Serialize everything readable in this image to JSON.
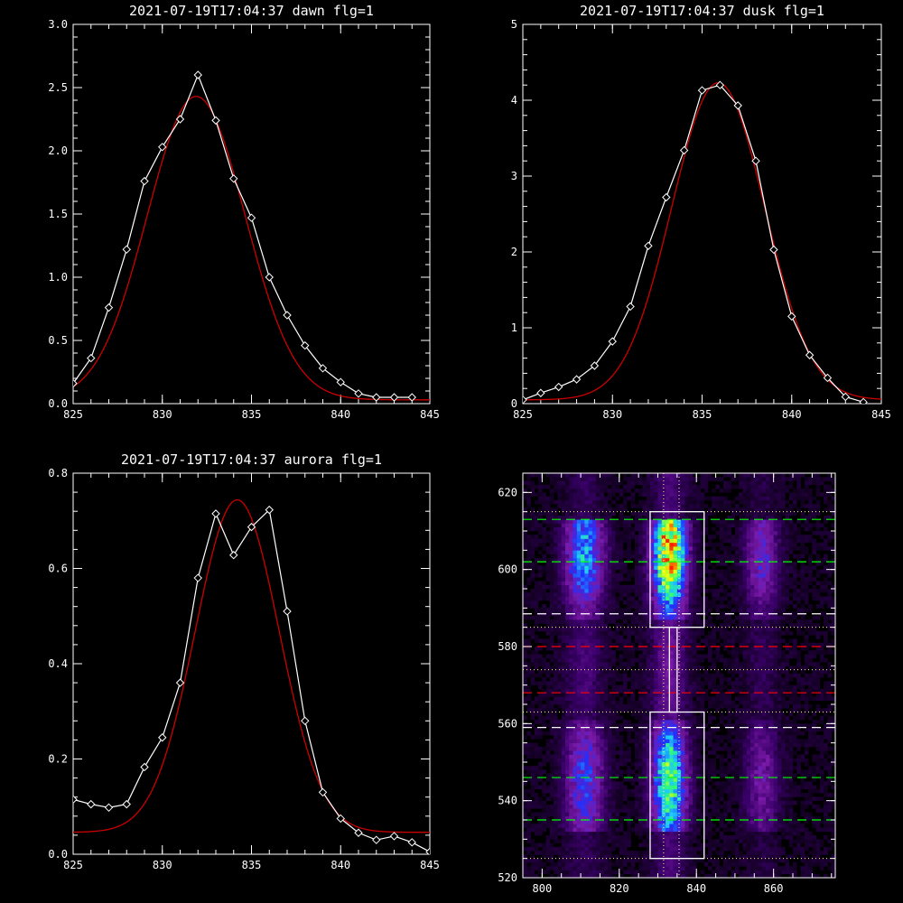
{
  "chart_data": [
    {
      "type": "line",
      "title": "2021-07-19T17:04:37 dawn flg=1",
      "xlim": [
        825,
        845
      ],
      "ylim": [
        0,
        3.0
      ],
      "xticks": [
        "825",
        "830",
        "835",
        "840",
        "845"
      ],
      "yticks": [
        "0.0",
        "0.5",
        "1.0",
        "1.5",
        "2.0",
        "2.5",
        "3.0"
      ],
      "series": [
        {
          "role": "measured",
          "color": "#ffffff",
          "marker": "diamond",
          "x": [
            825,
            826,
            827,
            828,
            829,
            830,
            831,
            832,
            833,
            834,
            835,
            836,
            837,
            838,
            839,
            840,
            841,
            842,
            843,
            844
          ],
          "y": [
            0.16,
            0.36,
            0.76,
            1.22,
            1.76,
            2.03,
            2.25,
            2.6,
            2.24,
            1.78,
            1.47,
            1.0,
            0.7,
            0.46,
            0.28,
            0.17,
            0.08,
            0.05,
            0.05,
            0.05
          ]
        },
        {
          "role": "fit",
          "color": "#cc0000",
          "model": "gaussian",
          "amplitude": 2.4,
          "center": 831.9,
          "sigma": 2.75,
          "baseline": 0.03,
          "xrange": [
            825,
            845
          ]
        }
      ]
    },
    {
      "type": "line",
      "title": "2021-07-19T17:04:37 dusk flg=1",
      "xlim": [
        825,
        845
      ],
      "ylim": [
        0,
        5
      ],
      "xticks": [
        "825",
        "830",
        "835",
        "840",
        "845"
      ],
      "yticks": [
        "0",
        "1",
        "2",
        "3",
        "4",
        "5"
      ],
      "series": [
        {
          "role": "measured",
          "color": "#ffffff",
          "marker": "diamond",
          "x": [
            825,
            826,
            827,
            828,
            829,
            830,
            831,
            832,
            833,
            834,
            835,
            836,
            837,
            838,
            839,
            840,
            841,
            842,
            843,
            844
          ],
          "y": [
            0.05,
            0.14,
            0.22,
            0.32,
            0.5,
            0.82,
            1.28,
            2.08,
            2.72,
            3.34,
            4.13,
            4.2,
            3.93,
            3.2,
            2.03,
            1.15,
            0.64,
            0.34,
            0.09,
            0.02
          ]
        },
        {
          "role": "fit",
          "color": "#cc0000",
          "model": "gaussian",
          "amplitude": 4.18,
          "center": 835.9,
          "sigma": 2.6,
          "baseline": 0.05,
          "xrange": [
            825,
            845
          ]
        }
      ]
    },
    {
      "type": "line",
      "title": "2021-07-19T17:04:37 aurora flg=1",
      "xlim": [
        825,
        845
      ],
      "ylim": [
        0,
        0.8
      ],
      "xticks": [
        "825",
        "830",
        "835",
        "840",
        "845"
      ],
      "yticks": [
        "0.0",
        "0.2",
        "0.4",
        "0.6",
        "0.8"
      ],
      "series": [
        {
          "role": "measured",
          "color": "#ffffff",
          "marker": "diamond",
          "x": [
            825,
            826,
            827,
            828,
            829,
            830,
            831,
            832,
            833,
            834,
            835,
            836,
            837,
            838,
            839,
            840,
            841,
            842,
            843,
            844,
            845
          ],
          "y": [
            0.115,
            0.105,
            0.098,
            0.105,
            0.183,
            0.245,
            0.36,
            0.58,
            0.715,
            0.628,
            0.687,
            0.723,
            0.51,
            0.28,
            0.13,
            0.075,
            0.045,
            0.03,
            0.038,
            0.025,
            0.005
          ]
        },
        {
          "role": "fit",
          "color": "#cc0000",
          "model": "gaussian",
          "amplitude": 0.698,
          "center": 834.2,
          "sigma": 2.35,
          "baseline": 0.046,
          "xrange": [
            825,
            845
          ]
        }
      ]
    },
    {
      "type": "heatmap",
      "xlim": [
        795,
        876
      ],
      "ylim": [
        520,
        625
      ],
      "xticks": [
        "800",
        "820",
        "840",
        "860"
      ],
      "yticks": [
        "520",
        "540",
        "560",
        "580",
        "600",
        "620"
      ],
      "colormap": [
        "#000000",
        "#3a006a",
        "#7a1aa8",
        "#2030ff",
        "#1ec8ff",
        "#30ff70",
        "#ffff00",
        "#ff2000"
      ],
      "emission_columns": [
        {
          "x_center": 811,
          "x_sigma": 3.4,
          "intensity": 0.55
        },
        {
          "x_center": 833,
          "x_sigma": 3.0,
          "intensity": 1.0
        },
        {
          "x_center": 857,
          "x_sigma": 3.0,
          "intensity": 0.32
        }
      ],
      "emission_bands": [
        {
          "y_from": 587,
          "y_to": 613,
          "center": 604,
          "peak": 1.0
        },
        {
          "y_from": 532,
          "y_to": 561,
          "center": 545,
          "peak": 0.7
        },
        {
          "y_from": 561,
          "y_to": 587,
          "center": 575,
          "peak": 0.12
        }
      ],
      "boxes": [
        {
          "x": [
            828,
            842
          ],
          "y": [
            585,
            615
          ],
          "color": "#ffffff"
        },
        {
          "x": [
            828,
            842
          ],
          "y": [
            525,
            563
          ],
          "color": "#ffffff"
        },
        {
          "x": [
            833,
            835
          ],
          "y": [
            563,
            585
          ],
          "color": "#ffffff"
        }
      ],
      "dashed_lines": [
        {
          "y": 613,
          "color": "#00ff00"
        },
        {
          "y": 602,
          "color": "#00ff00"
        },
        {
          "y": 588.5,
          "color": "#ffffff"
        },
        {
          "y": 580,
          "color": "#ff0000"
        },
        {
          "y": 568,
          "color": "#ff0000"
        },
        {
          "y": 559,
          "color": "#ffffff"
        },
        {
          "y": 546,
          "color": "#00ff00"
        },
        {
          "y": 535,
          "color": "#00ff00"
        }
      ],
      "dotted_hlines": [
        615,
        585,
        574,
        563,
        525
      ],
      "dotted_vlines": [
        831.5,
        835.5
      ],
      "dotted_color": "#ffff80"
    }
  ]
}
